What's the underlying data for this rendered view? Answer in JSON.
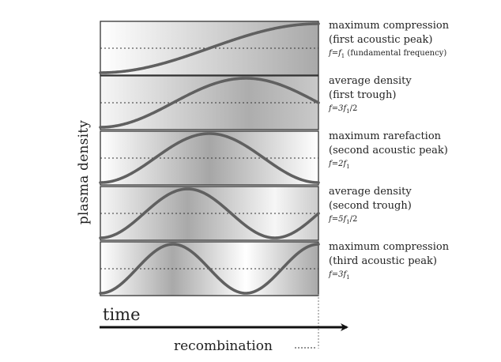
{
  "figure": {
    "y_axis_label": "plasma density",
    "x_axis_label": "time",
    "marker_label": "recombination",
    "panels": [
      {
        "title_lines": [
          "maximum compression",
          "(first acoustic peak)"
        ],
        "freq_main": "f=f",
        "freq_sub": "1",
        "freq_tail": " (fundamental frequency)",
        "wave_cycles": 0.5,
        "wave_start": "trough"
      },
      {
        "title_lines": [
          "average density",
          "(first trough)"
        ],
        "freq_main": "f=3f",
        "freq_sub": "1",
        "freq_tail": "/2",
        "wave_cycles": 0.75,
        "wave_start": "trough"
      },
      {
        "title_lines": [
          "maximum rarefaction",
          "(second acoustic peak)"
        ],
        "freq_main": "f=2f",
        "freq_sub": "1",
        "freq_tail": "",
        "wave_cycles": 1.0,
        "wave_start": "trough"
      },
      {
        "title_lines": [
          "average density",
          "(second trough)"
        ],
        "freq_main": "f=5f",
        "freq_sub": "1",
        "freq_tail": "/2",
        "wave_cycles": 1.25,
        "wave_start": "trough"
      },
      {
        "title_lines": [
          "maximum compression",
          "(third acoustic peak)"
        ],
        "freq_main": "f=3f",
        "freq_sub": "1",
        "freq_tail": "",
        "wave_cycles": 1.5,
        "wave_start": "trough"
      }
    ]
  }
}
